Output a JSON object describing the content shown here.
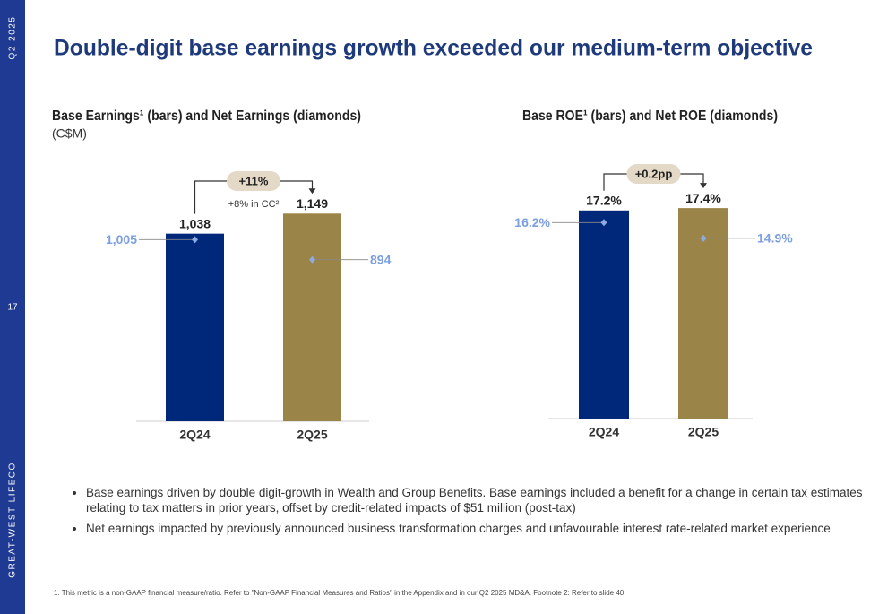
{
  "sidebar": {
    "period": "Q2 2025",
    "page": "17",
    "brand": "GREAT-WEST LIFECO"
  },
  "title": "Double-digit base earnings growth exceeded our medium-term objective",
  "chart_data": [
    {
      "type": "bar",
      "title": "Base Earnings¹ (bars) and Net Earnings (diamonds)",
      "subtitle": "(C$M)",
      "categories": [
        "2Q24",
        "2Q25"
      ],
      "colors": [
        "#00287a",
        "#9b8447"
      ],
      "series": [
        {
          "values": [
            1038,
            1149
          ],
          "value_labels": [
            "1,038",
            "1,149"
          ]
        },
        {
          "marker": "diamond",
          "color": "#8eaadf",
          "values": [
            1005,
            894
          ],
          "value_labels": [
            "1,005",
            "894"
          ]
        }
      ],
      "ylim": [
        0,
        1200
      ],
      "annotations": [
        "+11%",
        "+8% in CC²"
      ]
    },
    {
      "type": "bar",
      "title": "Base ROE¹ (bars) and Net ROE (diamonds)",
      "categories": [
        "2Q24",
        "2Q25"
      ],
      "colors": [
        "#00287a",
        "#9b8447"
      ],
      "series": [
        {
          "values": [
            17.2,
            17.4
          ],
          "value_labels": [
            "17.2%",
            "17.4%"
          ]
        },
        {
          "marker": "diamond",
          "color": "#8eaadf",
          "values": [
            16.2,
            14.9
          ],
          "value_labels": [
            "16.2%",
            "14.9%"
          ]
        }
      ],
      "ylim": [
        0,
        18
      ],
      "annotations": [
        "+0.2pp"
      ]
    }
  ],
  "bullets": [
    "Base earnings driven by double digit-growth in Wealth and Group Benefits. Base earnings included a benefit for a change in certain tax estimates relating to tax matters in prior years, offset by credit-related impacts of $51 million (post-tax)",
    "Net earnings impacted by previously announced business transformation charges and unfavourable interest rate-related market experience"
  ],
  "footnote": "1. This metric is a non-GAAP financial measure/ratio. Refer to \"Non-GAAP Financial Measures and Ratios\" in the Appendix and in our Q2 2025 MD&A. Footnote 2: Refer to slide 40."
}
